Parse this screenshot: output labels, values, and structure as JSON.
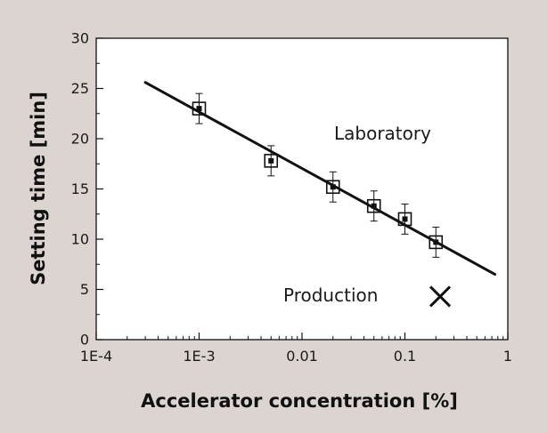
{
  "chart_data": {
    "type": "scatter",
    "xlabel": "Accelerator concentration [%]",
    "ylabel": "Setting time [min]",
    "x_scale": "log",
    "xlim": [
      0.0001,
      1
    ],
    "ylim": [
      0,
      30
    ],
    "x_ticks": [
      0.0001,
      0.001,
      0.01,
      0.1,
      1
    ],
    "x_tick_labels": [
      "1E-4",
      "1E-3",
      "0.01",
      "0.1",
      "1"
    ],
    "y_ticks": [
      0,
      5,
      10,
      15,
      20,
      25,
      30
    ],
    "y_tick_labels": [
      "0",
      "5",
      "10",
      "15",
      "20",
      "25",
      "30"
    ],
    "grid": false,
    "series": [
      {
        "name": "Laboratory",
        "marker": "square",
        "points": [
          {
            "x": 0.001,
            "y": 23.0,
            "err": 1.5
          },
          {
            "x": 0.005,
            "y": 17.8,
            "err": 1.5
          },
          {
            "x": 0.02,
            "y": 15.2,
            "err": 1.5
          },
          {
            "x": 0.05,
            "y": 13.3,
            "err": 1.5
          },
          {
            "x": 0.1,
            "y": 12.0,
            "err": 1.5
          },
          {
            "x": 0.2,
            "y": 9.7,
            "err": 1.5
          }
        ]
      },
      {
        "name": "Production",
        "marker": "x",
        "points": [
          {
            "x": 0.22,
            "y": 4.3
          }
        ]
      }
    ],
    "fit_line": {
      "x": [
        0.0003,
        0.75
      ],
      "y": [
        25.6,
        6.5
      ]
    },
    "annotations": [
      "Laboratory",
      "Production"
    ],
    "colors": {
      "background": "#dcd4d0",
      "plot_area": "#ffffff",
      "ink": "#111111"
    }
  }
}
